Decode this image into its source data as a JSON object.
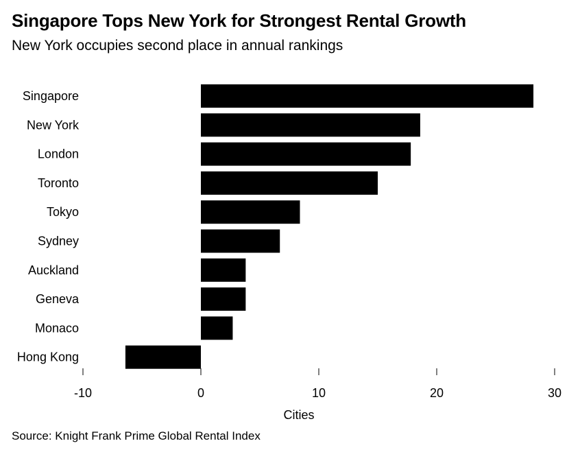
{
  "title": "Singapore Tops New York for Strongest Rental Growth",
  "subtitle": "New York occupies second place in annual rankings",
  "source": "Source: Knight Frank Prime Global Rental Index",
  "chart_data": {
    "type": "bar",
    "orientation": "horizontal",
    "title": "Singapore Tops New York for Strongest Rental Growth",
    "subtitle": "New York occupies second place in annual rankings",
    "xlabel": "Cities",
    "ylabel": "",
    "xlim": [
      -10,
      30
    ],
    "xticks": [
      -10,
      0,
      10,
      20,
      30
    ],
    "grid": false,
    "legend": "none",
    "bar_color": "#000000",
    "categories": [
      "Singapore",
      "New York",
      "London",
      "Toronto",
      "Tokyo",
      "Sydney",
      "Auckland",
      "Geneva",
      "Monaco",
      "Hong Kong"
    ],
    "values": [
      28.2,
      18.6,
      17.8,
      15.0,
      8.4,
      6.7,
      3.8,
      3.8,
      2.7,
      -6.4
    ]
  }
}
